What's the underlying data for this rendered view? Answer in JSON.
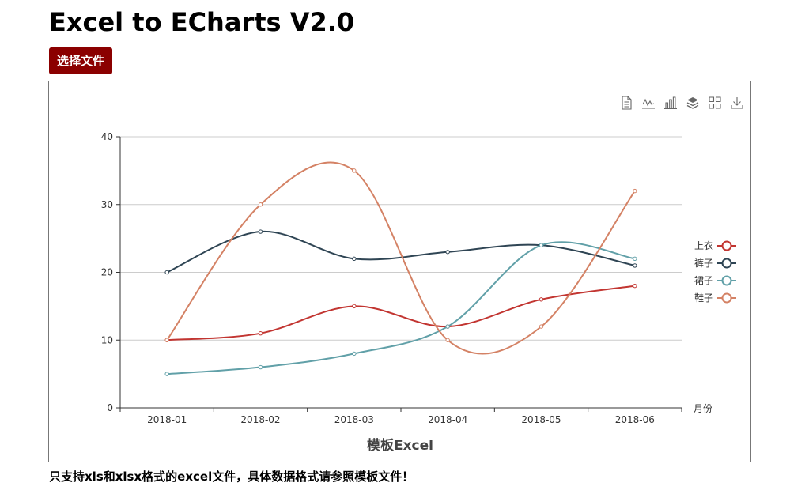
{
  "page": {
    "title": "Excel to ECharts V2.0",
    "upload_button": "选择文件",
    "note": "只支持xls和xlsx格式的excel文件，具体数据格式请参照模板文件！"
  },
  "toolbox": [
    {
      "name": "data-view-icon"
    },
    {
      "name": "line-chart-icon"
    },
    {
      "name": "bar-chart-icon"
    },
    {
      "name": "stack-icon"
    },
    {
      "name": "tiled-icon"
    },
    {
      "name": "download-icon"
    }
  ],
  "chart_data": {
    "type": "line",
    "title": "模板Excel",
    "xlabel": "月份",
    "ylabel": "",
    "categories": [
      "2018-01",
      "2018-02",
      "2018-03",
      "2018-04",
      "2018-05",
      "2018-06"
    ],
    "ylim": [
      0,
      40
    ],
    "yticks": [
      0,
      10,
      20,
      30,
      40
    ],
    "grid": true,
    "smooth": true,
    "legend_position": "right",
    "series": [
      {
        "name": "上衣",
        "color": "#c23531",
        "values": [
          10,
          11,
          15,
          12,
          16,
          18
        ]
      },
      {
        "name": "裤子",
        "color": "#2f4554",
        "values": [
          20,
          26,
          22,
          23,
          24,
          21
        ]
      },
      {
        "name": "裙子",
        "color": "#61a0a8",
        "values": [
          5,
          6,
          8,
          12,
          24,
          22
        ]
      },
      {
        "name": "鞋子",
        "color": "#d48265",
        "values": [
          10,
          30,
          35,
          10,
          12,
          32
        ]
      }
    ]
  }
}
